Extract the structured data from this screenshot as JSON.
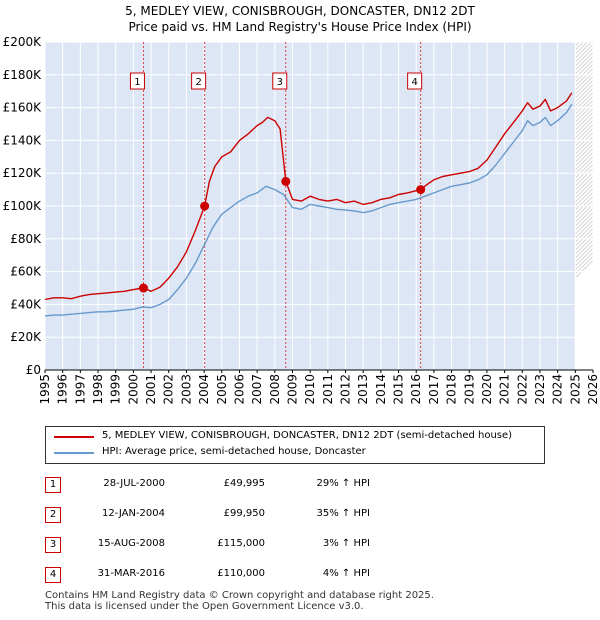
{
  "titles": {
    "line1": "5, MEDLEY VIEW, CONISBROUGH, DONCASTER, DN12 2DT",
    "line2": "Price paid vs. HM Land Registry's House Price Index (HPI)"
  },
  "colors": {
    "price_line": "#cc0000",
    "hpi_line": "#6699cc",
    "plot_bg": "#dde6f5",
    "grid": "#ffffff",
    "sale_vline": "#dd4444"
  },
  "chart_data": {
    "type": "line",
    "xlim": [
      1995,
      2026
    ],
    "ylim": [
      0,
      200000
    ],
    "x_ticks": [
      1995,
      1996,
      1997,
      1998,
      1999,
      2000,
      2001,
      2002,
      2003,
      2004,
      2005,
      2006,
      2007,
      2008,
      2009,
      2010,
      2011,
      2012,
      2013,
      2014,
      2015,
      2016,
      2017,
      2018,
      2019,
      2020,
      2021,
      2022,
      2023,
      2024,
      2025,
      2026
    ],
    "y_ticks": [
      {
        "value": 0,
        "label": "£0"
      },
      {
        "value": 20000,
        "label": "£20K"
      },
      {
        "value": 40000,
        "label": "£40K"
      },
      {
        "value": 60000,
        "label": "£60K"
      },
      {
        "value": 80000,
        "label": "£80K"
      },
      {
        "value": 100000,
        "label": "£100K"
      },
      {
        "value": 120000,
        "label": "£120K"
      },
      {
        "value": 140000,
        "label": "£140K"
      },
      {
        "value": 160000,
        "label": "£160K"
      },
      {
        "value": 180000,
        "label": "£180K"
      },
      {
        "value": 200000,
        "label": "£200K"
      }
    ],
    "series": [
      {
        "name": "5, MEDLEY VIEW, CONISBROUGH, DONCASTER, DN12 2DT (semi-detached house)",
        "x": [
          1995,
          1995.5,
          1996,
          1996.5,
          1997,
          1997.5,
          1998,
          1998.5,
          1999,
          1999.5,
          2000,
          2000.57,
          2001,
          2001.5,
          2002,
          2002.5,
          2003,
          2003.5,
          2004.03,
          2004.3,
          2004.6,
          2005,
          2005.5,
          2006,
          2006.5,
          2007,
          2007.3,
          2007.6,
          2008,
          2008.3,
          2008.62,
          2009,
          2009.5,
          2010,
          2010.5,
          2011,
          2011.5,
          2012,
          2012.5,
          2013,
          2013.5,
          2014,
          2014.5,
          2015,
          2015.5,
          2016.25,
          2016.6,
          2017,
          2017.5,
          2018,
          2018.5,
          2019,
          2019.5,
          2020,
          2020.5,
          2021,
          2021.5,
          2022,
          2022.3,
          2022.6,
          2023,
          2023.3,
          2023.6,
          2024,
          2024.5,
          2024.8
        ],
        "y": [
          43000,
          44000,
          44000,
          43500,
          45000,
          46000,
          46500,
          47000,
          47500,
          48000,
          49000,
          49995,
          48000,
          50500,
          56000,
          63000,
          72000,
          85000,
          99950,
          115000,
          124000,
          130000,
          133000,
          140000,
          144000,
          149000,
          151000,
          154000,
          152000,
          147000,
          115000,
          104000,
          103000,
          106000,
          104000,
          103000,
          104000,
          102000,
          103000,
          101000,
          102000,
          104000,
          105000,
          107000,
          108000,
          110000,
          113000,
          116000,
          118000,
          119000,
          120000,
          121000,
          123000,
          128000,
          136000,
          144000,
          151000,
          158000,
          163000,
          159000,
          161000,
          165000,
          158000,
          160000,
          164000,
          169000
        ]
      },
      {
        "name": "HPI: Average price, semi-detached house, Doncaster",
        "x": [
          1995,
          1995.5,
          1996,
          1996.5,
          1997,
          1997.5,
          1998,
          1998.5,
          1999,
          1999.5,
          2000,
          2000.5,
          2001,
          2001.5,
          2002,
          2002.5,
          2003,
          2003.5,
          2004,
          2004.5,
          2005,
          2005.5,
          2006,
          2006.5,
          2007,
          2007.5,
          2008,
          2008.5,
          2009,
          2009.5,
          2010,
          2010.5,
          2011,
          2011.5,
          2012,
          2012.5,
          2013,
          2013.5,
          2014,
          2014.5,
          2015,
          2015.5,
          2016,
          2016.5,
          2017,
          2017.5,
          2018,
          2018.5,
          2019,
          2019.5,
          2020,
          2020.5,
          2021,
          2021.5,
          2022,
          2022.3,
          2022.6,
          2023,
          2023.3,
          2023.6,
          2024,
          2024.5,
          2024.8
        ],
        "y": [
          33000,
          33500,
          33500,
          34000,
          34500,
          35000,
          35500,
          35500,
          36000,
          36500,
          37000,
          38500,
          38000,
          40000,
          43000,
          49000,
          56000,
          65000,
          76000,
          87000,
          95000,
          99000,
          103000,
          106000,
          108000,
          112000,
          110000,
          107000,
          99000,
          98000,
          101000,
          100000,
          99000,
          98000,
          97500,
          97000,
          96000,
          97000,
          99000,
          101000,
          102000,
          103000,
          104000,
          106000,
          108000,
          110000,
          112000,
          113000,
          114000,
          116000,
          119000,
          125000,
          132000,
          139000,
          146000,
          152000,
          149000,
          151000,
          154000,
          149000,
          152000,
          157000,
          162000
        ]
      }
    ],
    "sales": [
      {
        "n": "1",
        "x": 2000.57,
        "y": 49995
      },
      {
        "n": "2",
        "x": 2004.03,
        "y": 99950
      },
      {
        "n": "3",
        "x": 2008.62,
        "y": 115000
      },
      {
        "n": "4",
        "x": 2016.25,
        "y": 110000
      }
    ],
    "future_shade_from": 2025.0,
    "grid": true
  },
  "legend": {
    "price_label": "5, MEDLEY VIEW, CONISBROUGH, DONCASTER, DN12 2DT (semi-detached house)",
    "hpi_label": "HPI: Average price, semi-detached house, Doncaster"
  },
  "sales_table": [
    {
      "num": "1",
      "date": "28-JUL-2000",
      "price": "£49,995",
      "hpi": "29% ↑ HPI"
    },
    {
      "num": "2",
      "date": "12-JAN-2004",
      "price": "£99,950",
      "hpi": "35% ↑ HPI"
    },
    {
      "num": "3",
      "date": "15-AUG-2008",
      "price": "£115,000",
      "hpi": "3% ↑ HPI"
    },
    {
      "num": "4",
      "date": "31-MAR-2016",
      "price": "£110,000",
      "hpi": "4% ↑ HPI"
    }
  ],
  "footer": {
    "line1": "Contains HM Land Registry data © Crown copyright and database right 2025.",
    "line2": "This data is licensed under the Open Government Licence v3.0."
  }
}
